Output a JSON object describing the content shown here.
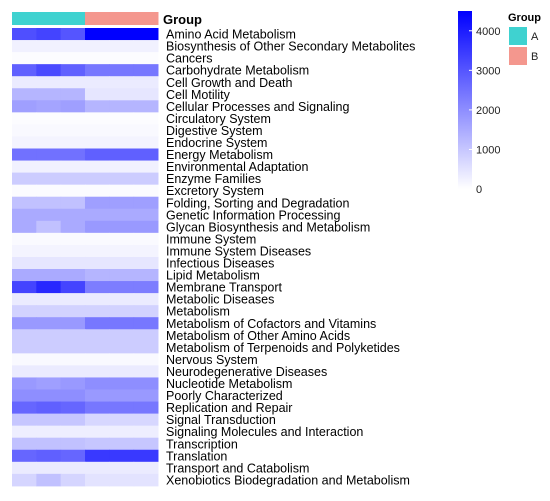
{
  "chart_data": {
    "type": "heatmap",
    "annotation_title": "Group",
    "column_groups": [
      "A",
      "A",
      "A",
      "B",
      "B",
      "B"
    ],
    "group_colors": {
      "A": "#3FD2D0",
      "B": "#F4978E"
    },
    "rows": [
      "Amino Acid Metabolism",
      "Biosynthesis of Other Secondary Metabolites",
      "Cancers",
      "Carbohydrate Metabolism",
      "Cell Growth and Death",
      "Cell Motility",
      "Cellular Processes and Signaling",
      "Circulatory System",
      "Digestive System",
      "Endocrine System",
      "Energy Metabolism",
      "Environmental Adaptation",
      "Enzyme Families",
      "Excretory System",
      "Folding, Sorting and Degradation",
      "Genetic Information Processing",
      "Glycan Biosynthesis and Metabolism",
      "Immune System",
      "Immune System Diseases",
      "Infectious Diseases",
      "Lipid Metabolism",
      "Membrane Transport",
      "Metabolic Diseases",
      "Metabolism",
      "Metabolism of Cofactors and Vitamins",
      "Metabolism of Other Amino Acids",
      "Metabolism of Terpenoids and Polyketides",
      "Nervous System",
      "Neurodegenerative Diseases",
      "Nucleotide Metabolism",
      "Poorly Characterized",
      "Replication and Repair",
      "Signal Transduction",
      "Signaling Molecules and Interaction",
      "Transcription",
      "Translation",
      "Transport and Catabolism",
      "Xenobiotics Biodegradation and Metabolism"
    ],
    "values": [
      [
        3100,
        3300,
        3000,
        4500,
        4500,
        4500
      ],
      [
        250,
        250,
        250,
        250,
        250,
        250
      ],
      [
        60,
        60,
        60,
        60,
        60,
        60
      ],
      [
        2800,
        3200,
        2800,
        2400,
        2400,
        2400
      ],
      [
        350,
        350,
        350,
        350,
        350,
        350
      ],
      [
        1300,
        1300,
        1300,
        450,
        450,
        450
      ],
      [
        1700,
        1600,
        1700,
        1300,
        1300,
        1300
      ],
      [
        60,
        60,
        60,
        60,
        60,
        60
      ],
      [
        100,
        100,
        100,
        100,
        100,
        100
      ],
      [
        200,
        200,
        200,
        200,
        200,
        200
      ],
      [
        2500,
        2500,
        2500,
        2800,
        2800,
        2800
      ],
      [
        250,
        250,
        250,
        250,
        250,
        250
      ],
      [
        900,
        900,
        900,
        900,
        900,
        900
      ],
      [
        70,
        70,
        70,
        70,
        70,
        70
      ],
      [
        1100,
        1100,
        1100,
        1700,
        1700,
        1700
      ],
      [
        1500,
        1500,
        1500,
        1500,
        1500,
        1500
      ],
      [
        1500,
        1100,
        1500,
        1800,
        1800,
        1800
      ],
      [
        80,
        80,
        80,
        80,
        80,
        80
      ],
      [
        200,
        200,
        200,
        200,
        200,
        200
      ],
      [
        450,
        450,
        450,
        450,
        450,
        450
      ],
      [
        1500,
        1500,
        1500,
        1300,
        1300,
        1300
      ],
      [
        3300,
        3800,
        3300,
        2300,
        2300,
        2300
      ],
      [
        350,
        350,
        350,
        350,
        350,
        350
      ],
      [
        800,
        800,
        800,
        800,
        800,
        800
      ],
      [
        1800,
        1800,
        1800,
        2400,
        2400,
        2400
      ],
      [
        900,
        900,
        900,
        900,
        900,
        900
      ],
      [
        900,
        900,
        900,
        900,
        900,
        900
      ],
      [
        100,
        100,
        100,
        100,
        100,
        100
      ],
      [
        350,
        350,
        350,
        350,
        350,
        350
      ],
      [
        1800,
        1700,
        1800,
        2000,
        2000,
        2000
      ],
      [
        2000,
        2000,
        2000,
        1800,
        1800,
        1800
      ],
      [
        2700,
        2800,
        2700,
        2400,
        2400,
        2400
      ],
      [
        1000,
        1000,
        1000,
        700,
        700,
        700
      ],
      [
        300,
        300,
        300,
        300,
        300,
        300
      ],
      [
        1100,
        1100,
        1100,
        1000,
        1000,
        1000
      ],
      [
        2700,
        2800,
        2700,
        3500,
        3500,
        3500
      ],
      [
        350,
        350,
        350,
        350,
        350,
        350
      ],
      [
        750,
        1100,
        750,
        500,
        500,
        500
      ]
    ],
    "color_scale": {
      "min": 0,
      "max": 4500,
      "low": "#FFFFFF",
      "high": "#0000FF"
    },
    "colorbar_ticks": [
      0,
      1000,
      2000,
      3000,
      4000
    ],
    "legend_title": "Group",
    "legend_items": [
      "A",
      "B"
    ]
  }
}
